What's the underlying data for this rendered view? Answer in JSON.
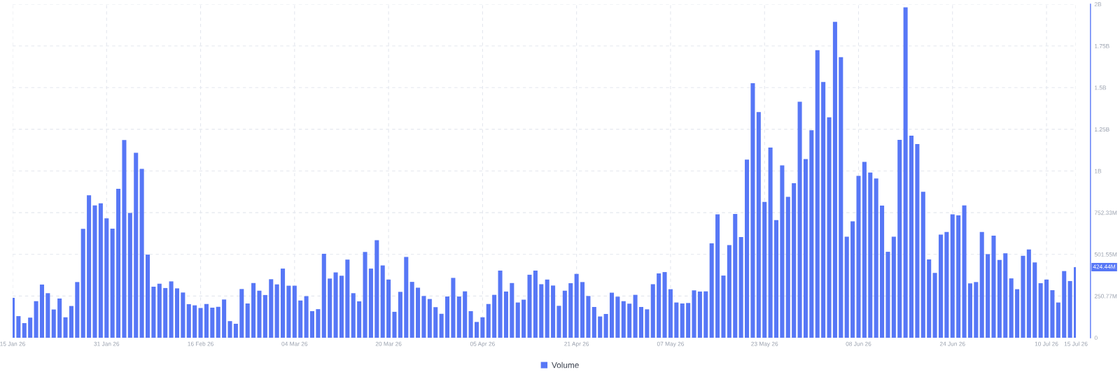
{
  "chart_data": {
    "type": "bar",
    "x": [
      "2026-01-15",
      "2026-01-16",
      "2026-01-17",
      "2026-01-18",
      "2026-01-19",
      "2026-01-20",
      "2026-01-21",
      "2026-01-22",
      "2026-01-23",
      "2026-01-24",
      "2026-01-25",
      "2026-01-26",
      "2026-01-27",
      "2026-01-28",
      "2026-01-29",
      "2026-01-30",
      "2026-01-31",
      "2026-02-01",
      "2026-02-02",
      "2026-02-03",
      "2026-02-04",
      "2026-02-05",
      "2026-02-06",
      "2026-02-07",
      "2026-02-08",
      "2026-02-09",
      "2026-02-10",
      "2026-02-11",
      "2026-02-12",
      "2026-02-13",
      "2026-02-14",
      "2026-02-15",
      "2026-02-16",
      "2026-02-17",
      "2026-02-18",
      "2026-02-19",
      "2026-02-20",
      "2026-02-21",
      "2026-02-22",
      "2026-02-23",
      "2026-02-24",
      "2026-02-25",
      "2026-02-26",
      "2026-02-27",
      "2026-02-28",
      "2026-03-01",
      "2026-03-02",
      "2026-03-03",
      "2026-03-04",
      "2026-03-05",
      "2026-03-06",
      "2026-03-07",
      "2026-03-08",
      "2026-03-09",
      "2026-03-10",
      "2026-03-11",
      "2026-03-12",
      "2026-03-13",
      "2026-03-14",
      "2026-03-15",
      "2026-03-16",
      "2026-03-17",
      "2026-03-18",
      "2026-03-19",
      "2026-03-20",
      "2026-03-21",
      "2026-03-22",
      "2026-03-23",
      "2026-03-24",
      "2026-03-25",
      "2026-03-26",
      "2026-03-27",
      "2026-03-28",
      "2026-03-29",
      "2026-03-30",
      "2026-03-31",
      "2026-04-01",
      "2026-04-02",
      "2026-04-03",
      "2026-04-04",
      "2026-04-05",
      "2026-04-06",
      "2026-04-07",
      "2026-04-08",
      "2026-04-09",
      "2026-04-10",
      "2026-04-11",
      "2026-04-12",
      "2026-04-13",
      "2026-04-14",
      "2026-04-15",
      "2026-04-16",
      "2026-04-17",
      "2026-04-18",
      "2026-04-19",
      "2026-04-20",
      "2026-04-21",
      "2026-04-22",
      "2026-04-23",
      "2026-04-24",
      "2026-04-25",
      "2026-04-26",
      "2026-04-27",
      "2026-04-28",
      "2026-04-29",
      "2026-04-30",
      "2026-05-01",
      "2026-05-02",
      "2026-05-03",
      "2026-05-04",
      "2026-05-05",
      "2026-05-06",
      "2026-05-07",
      "2026-05-08",
      "2026-05-09",
      "2026-05-10",
      "2026-05-11",
      "2026-05-12",
      "2026-05-13",
      "2026-05-14",
      "2026-05-15",
      "2026-05-16",
      "2026-05-17",
      "2026-05-18",
      "2026-05-19",
      "2026-05-20",
      "2026-05-21",
      "2026-05-22",
      "2026-05-23",
      "2026-05-24",
      "2026-05-25",
      "2026-05-26",
      "2026-05-27",
      "2026-05-28",
      "2026-05-29",
      "2026-05-30",
      "2026-05-31",
      "2026-06-01",
      "2026-06-02",
      "2026-06-03",
      "2026-06-04",
      "2026-06-05",
      "2026-06-06",
      "2026-06-07",
      "2026-06-08",
      "2026-06-09",
      "2026-06-10",
      "2026-06-11",
      "2026-06-12",
      "2026-06-13",
      "2026-06-14",
      "2026-06-15",
      "2026-06-16",
      "2026-06-17",
      "2026-06-18",
      "2026-06-19",
      "2026-06-20",
      "2026-06-21",
      "2026-06-22",
      "2026-06-23",
      "2026-06-24",
      "2026-06-25",
      "2026-06-26",
      "2026-06-27",
      "2026-06-28",
      "2026-06-29",
      "2026-06-30",
      "2026-07-01",
      "2026-07-02",
      "2026-07-03",
      "2026-07-04",
      "2026-07-05",
      "2026-07-06",
      "2026-07-07",
      "2026-07-08",
      "2026-07-09",
      "2026-07-10",
      "2026-07-11",
      "2026-07-12",
      "2026-07-13",
      "2026-07-14",
      "2026-07-15"
    ],
    "series": [
      {
        "name": "Volume",
        "color": "#5777f6",
        "values": [
          240000000,
          130000000,
          88000000,
          121000000,
          220000000,
          320000000,
          268000000,
          170000000,
          236000000,
          123000000,
          191000000,
          335000000,
          655000000,
          857000000,
          796000000,
          809000000,
          718000000,
          656000000,
          896000000,
          1189000000,
          751000000,
          1112000000,
          1016000000,
          500000000,
          307000000,
          325000000,
          299000000,
          339000000,
          297000000,
          272000000,
          202000000,
          195000000,
          179000000,
          203000000,
          181000000,
          186000000,
          230000000,
          100000000,
          84000000,
          293000000,
          206000000,
          329000000,
          283000000,
          257000000,
          352000000,
          321000000,
          416000000,
          313000000,
          313000000,
          224000000,
          250000000,
          160000000,
          172000000,
          505000000,
          356000000,
          393000000,
          373000000,
          470000000,
          268000000,
          219000000,
          516000000,
          416000000,
          587000000,
          435000000,
          350000000,
          156000000,
          276000000,
          486000000,
          336000000,
          301000000,
          251000000,
          233000000,
          184000000,
          144000000,
          248000000,
          360000000,
          248000000,
          279000000,
          160000000,
          95000000,
          123000000,
          203000000,
          258000000,
          404000000,
          278000000,
          329000000,
          212000000,
          229000000,
          379000000,
          404000000,
          322000000,
          350000000,
          314000000,
          192000000,
          283000000,
          328000000,
          384000000,
          335000000,
          251000000,
          185000000,
          128000000,
          143000000,
          271000000,
          247000000,
          220000000,
          205000000,
          258000000,
          185000000,
          171000000,
          322000000,
          387000000,
          395000000,
          292000000,
          212000000,
          206000000,
          209000000,
          285000000,
          278000000,
          279000000,
          568000000,
          742000000,
          374000000,
          557000000,
          744000000,
          606000000,
          1071000000,
          1531000000,
          1357000000,
          817000000,
          1144000000,
          708000000,
          1037000000,
          847000000,
          929000000,
          1420000000,
          1075000000,
          1248000000,
          1730000000,
          1538000000,
          1326000000,
          1900000000,
          1688000000,
          608000000,
          700000000,
          974000000,
          1058000000,
          994000000,
          958000000,
          795000000,
          517000000,
          608000000,
          1190000000,
          1987000000,
          1215000000,
          1165000000,
          878000000,
          471000000,
          390000000,
          620000000,
          636000000,
          742000000,
          736000000,
          796000000,
          327000000,
          335000000,
          636000000,
          503000000,
          614000000,
          468000000,
          508000000,
          357000000,
          292000000,
          493000000,
          531000000,
          453000000,
          328000000,
          350000000,
          286000000,
          212000000,
          401000000,
          341000000,
          424440000
        ]
      }
    ],
    "xlim": [
      "2026-01-15",
      "2026-07-15"
    ],
    "xticks": [
      {
        "value": "2026-01-15",
        "label": "15 Jan 26"
      },
      {
        "value": "2026-01-31",
        "label": "31 Jan 26"
      },
      {
        "value": "2026-02-16",
        "label": "16 Feb 26"
      },
      {
        "value": "2026-03-04",
        "label": "04 Mar 26"
      },
      {
        "value": "2026-03-20",
        "label": "20 Mar 26"
      },
      {
        "value": "2026-04-05",
        "label": "05 Apr 26"
      },
      {
        "value": "2026-04-21",
        "label": "21 Apr 26"
      },
      {
        "value": "2026-05-07",
        "label": "07 May 26"
      },
      {
        "value": "2026-05-23",
        "label": "23 May 26"
      },
      {
        "value": "2026-06-08",
        "label": "08 Jun 26"
      },
      {
        "value": "2026-06-24",
        "label": "24 Jun 26"
      },
      {
        "value": "2026-07-10",
        "label": "10 Jul 26"
      },
      {
        "value": "2026-07-15",
        "label": "15 Jul 26"
      }
    ],
    "ylim": [
      0,
      2006200000
    ],
    "yticks": [
      0,
      {
        "value": 250770000,
        "label": "250.77M"
      },
      {
        "value": 501550000,
        "label": "501.55M"
      },
      {
        "value": 752330000,
        "label": "752.33M"
      },
      {
        "value": 1003100000,
        "label": "1B"
      },
      {
        "value": 1253900000,
        "label": "1.25B"
      },
      {
        "value": 1504700000,
        "label": "1.5B"
      },
      {
        "value": 1754900000,
        "label": "1.75B"
      },
      {
        "value": 2006200000,
        "label": "2B"
      }
    ],
    "grid": true,
    "legend": "bottom",
    "annotations": [
      "424.44M"
    ]
  }
}
